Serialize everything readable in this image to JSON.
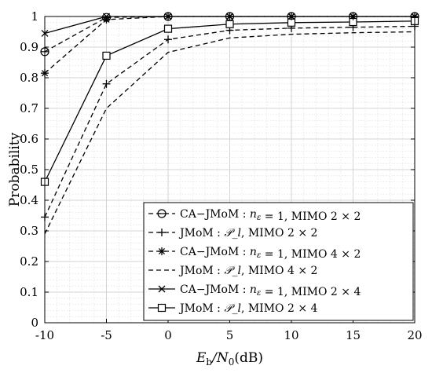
{
  "chart_data": {
    "type": "line",
    "xlabel_main": "E",
    "xlabel_sub1": "b",
    "xlabel_mid": "/N",
    "xlabel_sub2": "0",
    "xlabel_tail": "(dB)",
    "ylabel": "Probability",
    "xlim": [
      -10,
      20
    ],
    "ylim": [
      0,
      1
    ],
    "xticks": [
      "-10",
      "-5",
      "0",
      "5",
      "10",
      "15",
      "20"
    ],
    "yticks": [
      "0",
      "0.1",
      "0.2",
      "0.3",
      "0.4",
      "0.5",
      "0.6",
      "0.7",
      "0.8",
      "0.9",
      "1"
    ],
    "x": [
      -10,
      -5,
      0,
      5,
      10,
      15,
      20
    ],
    "grid": true,
    "legend_position": "bottom-right",
    "series": [
      {
        "name": "CA−JMoM : n_ε = 1, MIMO 2 × 2",
        "dash": true,
        "marker": "circle-bar",
        "values": [
          0.885,
          0.997,
          1.0,
          1.0,
          1.0,
          1.0,
          1.0
        ]
      },
      {
        "name": "JMoM : 𝒫_l, MIMO 2 × 2",
        "dash": true,
        "marker": "plus",
        "values": [
          0.345,
          0.78,
          0.925,
          0.955,
          0.962,
          0.965,
          0.968
        ]
      },
      {
        "name": "CA−JMoM : n_ε = 1, MIMO 4 × 2",
        "dash": true,
        "marker": "asterisk",
        "values": [
          0.815,
          0.99,
          1.0,
          1.0,
          1.0,
          1.0,
          1.0
        ]
      },
      {
        "name": "JMoM : 𝒫_l, MIMO 4 × 2",
        "dash": true,
        "marker": "none",
        "values": [
          0.29,
          0.7,
          0.883,
          0.93,
          0.942,
          0.947,
          0.95
        ]
      },
      {
        "name": "CA−JMoM : n_ε = 1, MIMO 2 × 4",
        "dash": false,
        "marker": "x",
        "values": [
          0.945,
          1.0,
          1.0,
          1.0,
          1.0,
          1.0,
          1.0
        ]
      },
      {
        "name": "JMoM : 𝒫_l, MIMO 2 × 4",
        "dash": false,
        "marker": "square",
        "values": [
          0.46,
          0.872,
          0.96,
          0.975,
          0.98,
          0.982,
          0.985
        ]
      }
    ]
  }
}
